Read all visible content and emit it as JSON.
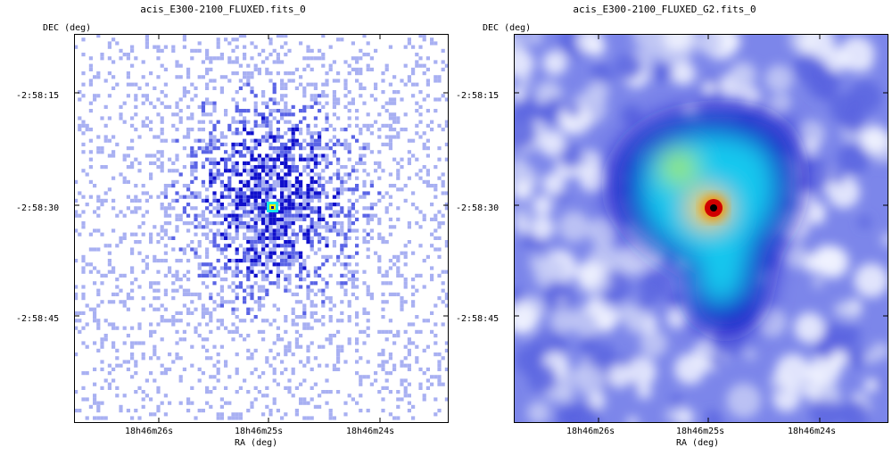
{
  "panels": [
    {
      "title": "acis_E300-2100_FLUXED.fits_0",
      "ylabel": "DEC (deg)",
      "xlabel": "RA (deg)",
      "yticks": [
        "-2:58:15",
        "-2:58:30",
        "-2:58:45"
      ],
      "xticks": [
        "18h46m26s",
        "18h46m25s",
        "18h46m24s"
      ]
    },
    {
      "title": "acis_E300-2100_FLUXED_G2.fits_0",
      "ylabel": "DEC (deg)",
      "xlabel": "RA (deg)",
      "yticks": [
        "-2:58:15",
        "-2:58:30",
        "-2:58:45"
      ],
      "xticks": [
        "18h46m26s",
        "18h46m25s",
        "18h46m24s"
      ]
    }
  ],
  "colors": {
    "background": "#ffffff",
    "pixel_light": "#a8b0f2",
    "pixel_mid": "#5a64e6",
    "pixel_dark": "#1010cc",
    "hot_cyan": "#18e8e8",
    "hot_yellow": "#f0f000",
    "hot_red": "#d00000",
    "frame": "#000000"
  }
}
